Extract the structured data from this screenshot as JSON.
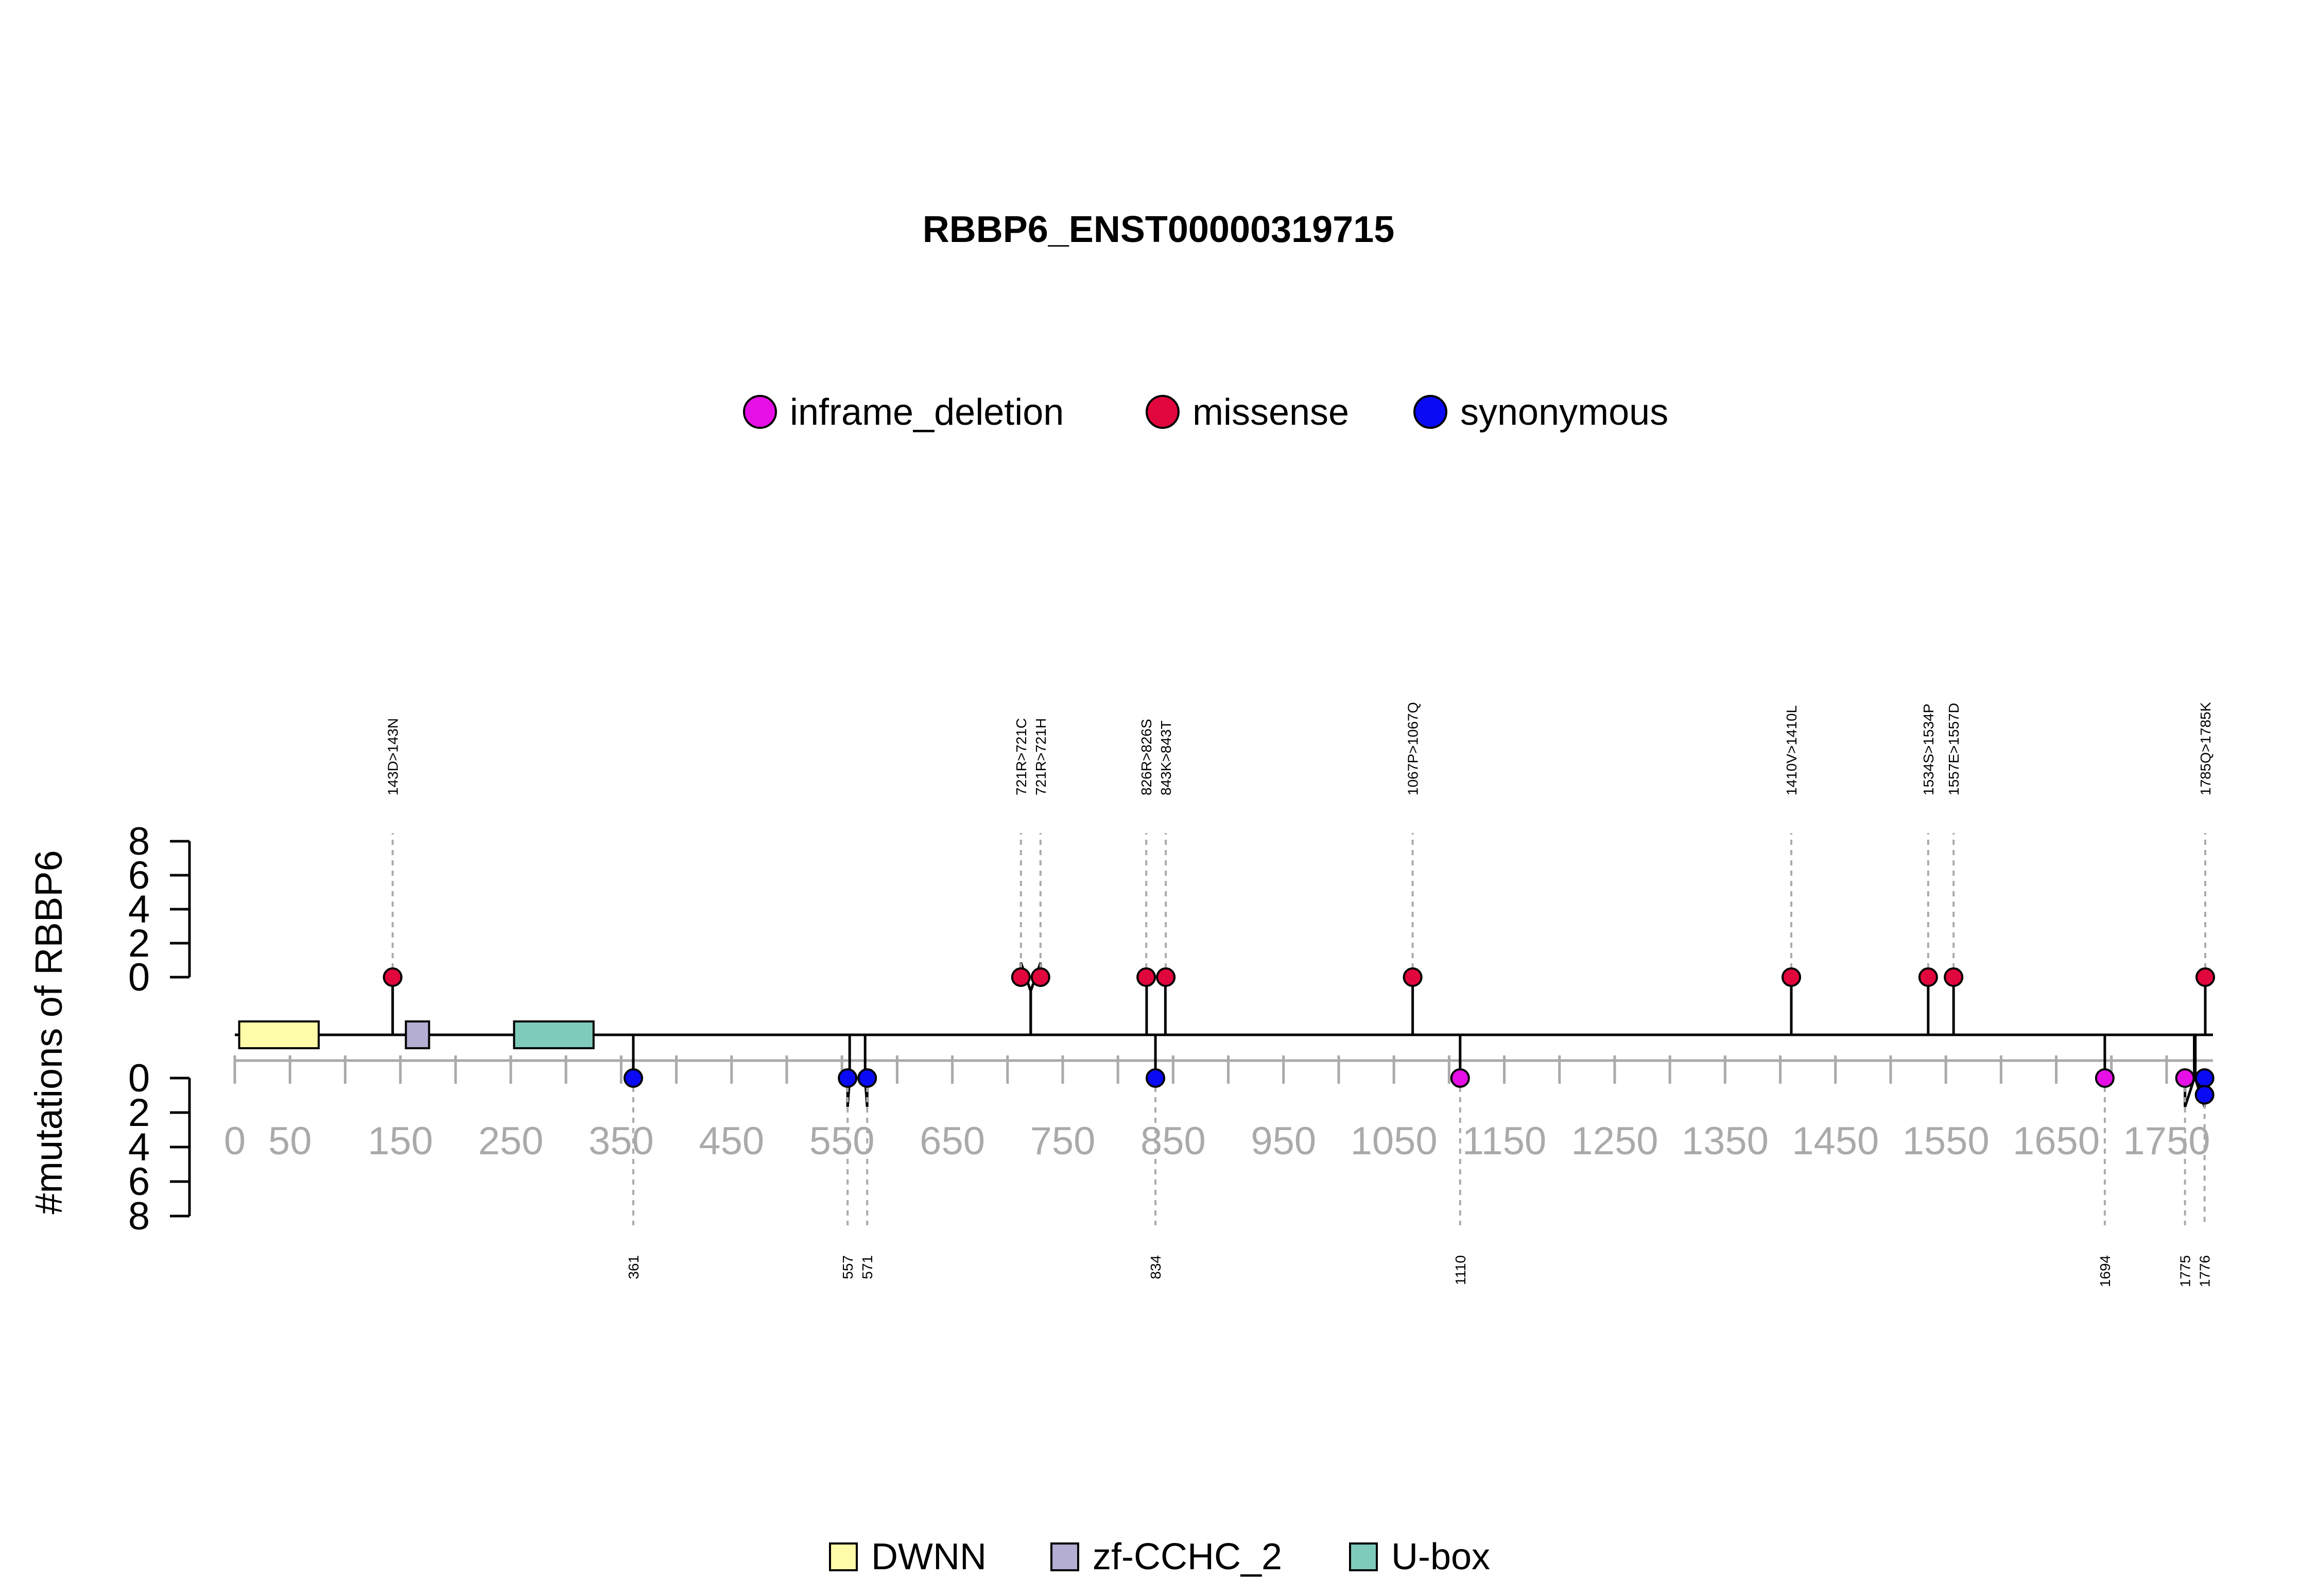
{
  "chart_data": {
    "type": "lollipop",
    "title": "RBBP6_ENST00000319715",
    "ylabel": "#mutations of RBBP6",
    "protein_length": 1792,
    "xlim": [
      0,
      1800
    ],
    "x_ticks": [
      0,
      50,
      150,
      250,
      350,
      450,
      550,
      650,
      750,
      850,
      950,
      1050,
      1150,
      1250,
      1350,
      1450,
      1550,
      1650,
      1750
    ],
    "x_tick_labels": [
      "0",
      "50",
      "150",
      "250",
      "350",
      "450",
      "550",
      "650",
      "750",
      "850",
      "950",
      "1050",
      "1150",
      "1250",
      "1350",
      "1450",
      "1550",
      "1650",
      "1750"
    ],
    "y_ticks": [
      0,
      2,
      4,
      6,
      8
    ],
    "y_tick_labels": [
      "0",
      "2",
      "4",
      "6",
      "8"
    ],
    "legend": [
      {
        "name": "inframe_deletion",
        "color": "#e60fe6"
      },
      {
        "name": "missense",
        "color": "#e1063d"
      },
      {
        "name": "synonymous",
        "color": "#0a0af5"
      }
    ],
    "domain_legend": [
      {
        "name": "DWNN",
        "color": "#fefca8"
      },
      {
        "name": "zf-CCHC_2",
        "color": "#b3aed2"
      },
      {
        "name": "U-box",
        "color": "#7ecbbb"
      }
    ],
    "domains": [
      {
        "name": "DWNN",
        "start": 4,
        "end": 76,
        "color": "#fefca8"
      },
      {
        "name": "zf-CCHC_2",
        "start": 155,
        "end": 176,
        "color": "#b3aed2"
      },
      {
        "name": "U-box",
        "start": 253,
        "end": 325,
        "color": "#7ecbbb"
      }
    ],
    "top_mutations": [
      {
        "pos": 143,
        "label": "143D>143N",
        "type": "missense",
        "count": 1
      },
      {
        "pos": 721,
        "label": "721R>721C",
        "type": "missense",
        "count": 1
      },
      {
        "pos": 721,
        "label": "721R>721H",
        "type": "missense",
        "count": 1
      },
      {
        "pos": 826,
        "label": "826R>826S",
        "type": "missense",
        "count": 1
      },
      {
        "pos": 843,
        "label": "843K>843T",
        "type": "missense",
        "count": 1
      },
      {
        "pos": 1067,
        "label": "1067P>1067Q",
        "type": "missense",
        "count": 1
      },
      {
        "pos": 1410,
        "label": "1410V>1410L",
        "type": "missense",
        "count": 1
      },
      {
        "pos": 1534,
        "label": "1534S>1534P",
        "type": "missense",
        "count": 1
      },
      {
        "pos": 1557,
        "label": "1557E>1557D",
        "type": "missense",
        "count": 1
      },
      {
        "pos": 1785,
        "label": "1785Q>1785K",
        "type": "missense",
        "count": 1
      }
    ],
    "bottom_mutations": [
      {
        "pos": 361,
        "label": "361",
        "type": "synonymous",
        "count": 1
      },
      {
        "pos": 557,
        "label": "557",
        "type": "synonymous",
        "count": 1
      },
      {
        "pos": 571,
        "label": "571",
        "type": "synonymous",
        "count": 1
      },
      {
        "pos": 834,
        "label": "834",
        "type": "synonymous",
        "count": 1
      },
      {
        "pos": 1110,
        "label": "1110",
        "type": "inframe_deletion",
        "count": 1
      },
      {
        "pos": 1694,
        "label": "1694",
        "type": "inframe_deletion",
        "count": 1
      },
      {
        "pos": 1775,
        "label": "1775",
        "type": "inframe_deletion",
        "count": 1
      },
      {
        "pos": 1776,
        "label": "1776",
        "type": "synonymous",
        "count": 2
      }
    ]
  }
}
